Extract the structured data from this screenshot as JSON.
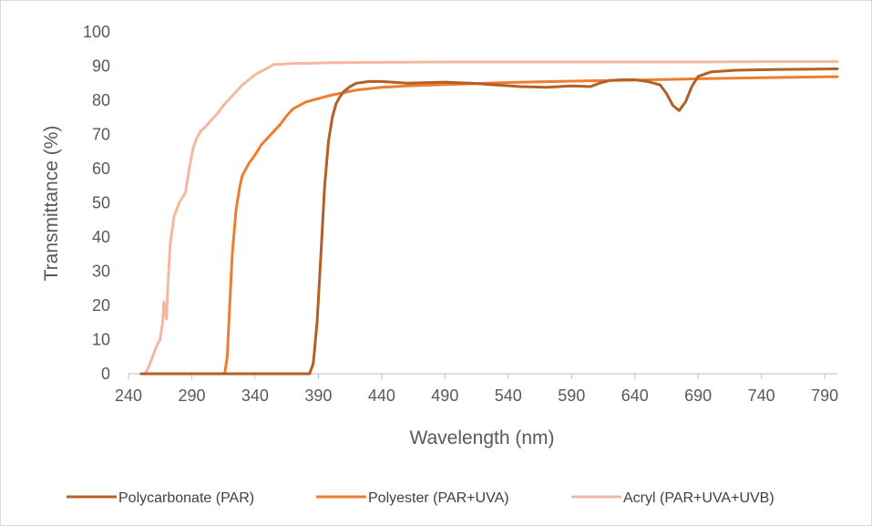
{
  "chart_data": {
    "type": "line",
    "xlabel": "Wavelength (nm)",
    "ylabel": "Transmittance (%)",
    "xlim": [
      240,
      800
    ],
    "ylim": [
      0,
      100
    ],
    "x_ticks": [
      240,
      290,
      340,
      390,
      440,
      490,
      540,
      590,
      640,
      690,
      740,
      790
    ],
    "y_ticks": [
      0,
      10,
      20,
      30,
      40,
      50,
      60,
      70,
      80,
      90,
      100
    ],
    "grid": false,
    "legend_position": "bottom",
    "series": [
      {
        "name": "Polycarbonate (PAR)",
        "color": "#b45f26",
        "x": [
          250,
          300,
          350,
          383,
          386,
          389,
          392,
          395,
          398,
          401,
          404,
          407,
          410,
          415,
          420,
          430,
          440,
          460,
          490,
          510,
          530,
          550,
          570,
          590,
          605,
          612,
          620,
          630,
          640,
          650,
          660,
          665,
          670,
          675,
          680,
          685,
          690,
          700,
          720,
          750,
          800
        ],
        "y": [
          0,
          0,
          0,
          0,
          3,
          15,
          35,
          55,
          68,
          75,
          79,
          81,
          82.5,
          84,
          85,
          85.5,
          85.5,
          85,
          85.3,
          85,
          84.5,
          84,
          83.8,
          84.2,
          84,
          85,
          85.8,
          86,
          86,
          85.5,
          84.5,
          82,
          78.5,
          77,
          79.5,
          84,
          87,
          88.3,
          88.8,
          89,
          89.2
        ]
      },
      {
        "name": "Polyester (PAR+UVA)",
        "color": "#ed7d31",
        "x": [
          250,
          300,
          316,
          318,
          320,
          322,
          325,
          328,
          330,
          335,
          340,
          345,
          350,
          355,
          360,
          365,
          370,
          380,
          390,
          400,
          420,
          440,
          460,
          490,
          540,
          590,
          640,
          690,
          740,
          800
        ],
        "y": [
          0,
          0,
          0,
          5,
          20,
          35,
          48,
          55,
          58,
          61.5,
          64,
          67,
          69,
          71,
          73,
          75.5,
          77.5,
          79.5,
          80.5,
          81.5,
          83,
          83.8,
          84.2,
          84.6,
          85.2,
          85.6,
          85.9,
          86.3,
          86.6,
          86.9
        ]
      },
      {
        "name": "Acryl (PAR+UVA+UVB)",
        "color": "#f4b8a0",
        "x": [
          250,
          253,
          256,
          259,
          262,
          265,
          267,
          268,
          269,
          270,
          271,
          273,
          276,
          280,
          285,
          288,
          291,
          294,
          297,
          300,
          305,
          310,
          315,
          320,
          325,
          330,
          335,
          340,
          345,
          350,
          355,
          360,
          370,
          380,
          400,
          440,
          490,
          540,
          590,
          640,
          690,
          740,
          800
        ],
        "y": [
          0,
          0,
          2,
          5,
          8,
          10,
          15,
          21,
          18,
          16,
          25,
          38,
          46,
          50,
          53,
          60,
          66,
          69,
          71,
          72,
          74,
          76,
          78.5,
          80.5,
          82.5,
          84.5,
          86,
          87.5,
          88.5,
          89.5,
          90.5,
          90.5,
          90.8,
          90.8,
          91,
          91.1,
          91.2,
          91.2,
          91.2,
          91.2,
          91.2,
          91.3,
          91.3
        ]
      }
    ]
  }
}
